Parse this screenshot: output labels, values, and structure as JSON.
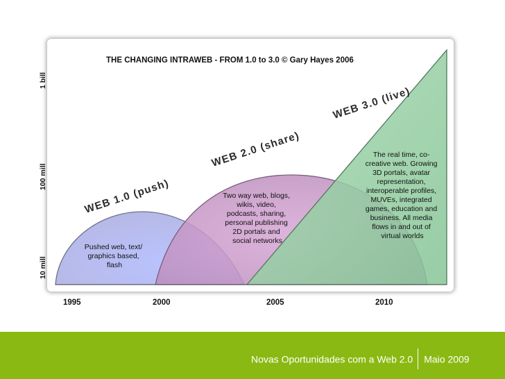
{
  "diagram": {
    "title": "THE CHANGING INTRAWEB - FROM 1.0 to 3.0 © Gary Hayes 2006",
    "y_axis": [
      "1 bill",
      "100 mill",
      "10 mill"
    ],
    "x_axis": [
      "1995",
      "2000",
      "2005",
      "2010"
    ],
    "waves": [
      {
        "name": "WEB 1.0 (push)",
        "description": [
          "Pushed web, text/",
          "graphics based,",
          "flash"
        ],
        "color": "#aab4f4"
      },
      {
        "name": "WEB 2.0 (share)",
        "description": [
          "Two way web, blogs,",
          "wikis, video,",
          "podcasts, sharing,",
          "personal publishing",
          "2D portals and",
          "social networks"
        ],
        "color": "#c99fcb"
      },
      {
        "name": "WEB 3.0 (live)",
        "description": [
          "The real time, co-",
          "creative web. Growing",
          "3D portals, avatar",
          "representation,",
          "interoperable profiles,",
          "MUVEs, integrated",
          "games, education and",
          "business. All media",
          "flows in and out of",
          "virtual worlds"
        ],
        "color": "#9ccfa8"
      }
    ]
  },
  "footer": {
    "title": "Novas Oportunidades com a Web 2.0",
    "date": "Maio 2009",
    "color": "#8bb913"
  }
}
